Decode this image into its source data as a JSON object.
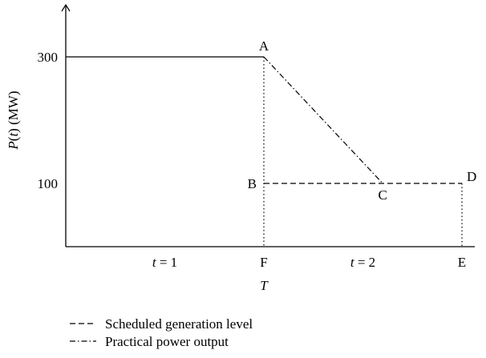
{
  "chart_data": {
    "type": "line",
    "ylabel": "P(t) (MW)",
    "ylabel_parts": {
      "p": "P",
      "t": "t",
      "rest": ") (MW)"
    },
    "xlabel": "T",
    "y_ticks": [
      300,
      100
    ],
    "ylim": [
      0,
      360
    ],
    "x_labels": [
      {
        "x": 1,
        "text": "t = 1",
        "var": "t",
        "rest": " = 1"
      },
      {
        "x": 2,
        "text": "F"
      },
      {
        "x": 3,
        "text": "t = 2",
        "var": "t",
        "rest": " = 2"
      },
      {
        "x": 4,
        "text": "E"
      }
    ],
    "points": {
      "A": {
        "x": 2,
        "y": 300
      },
      "B": {
        "x": 2,
        "y": 100
      },
      "C": {
        "x": 3.2,
        "y": 100
      },
      "D": {
        "x": 4,
        "y": 100
      },
      "F": {
        "x": 2,
        "y": 0
      },
      "E": {
        "x": 4,
        "y": 0
      }
    },
    "series": [
      {
        "name": "",
        "style": "solid",
        "points": [
          [
            0,
            300
          ],
          [
            2,
            300
          ]
        ]
      },
      {
        "name": "Scheduled generation level",
        "style": "dashed",
        "points": [
          [
            2,
            100
          ],
          [
            4,
            100
          ]
        ]
      },
      {
        "name": "Practical power output",
        "style": "dashdot",
        "points": [
          [
            2,
            300
          ],
          [
            3.2,
            100
          ]
        ]
      }
    ],
    "guides": [
      {
        "style": "dotted",
        "points": [
          [
            2,
            300
          ],
          [
            2,
            0
          ]
        ]
      },
      {
        "style": "dotted",
        "points": [
          [
            4,
            100
          ],
          [
            4,
            0
          ]
        ]
      }
    ],
    "legend": {
      "placement": "bottom-left",
      "entries": [
        {
          "label": "Scheduled generation level",
          "style": "dashed"
        },
        {
          "label": "Practical power output",
          "style": "dashdot"
        }
      ]
    }
  }
}
